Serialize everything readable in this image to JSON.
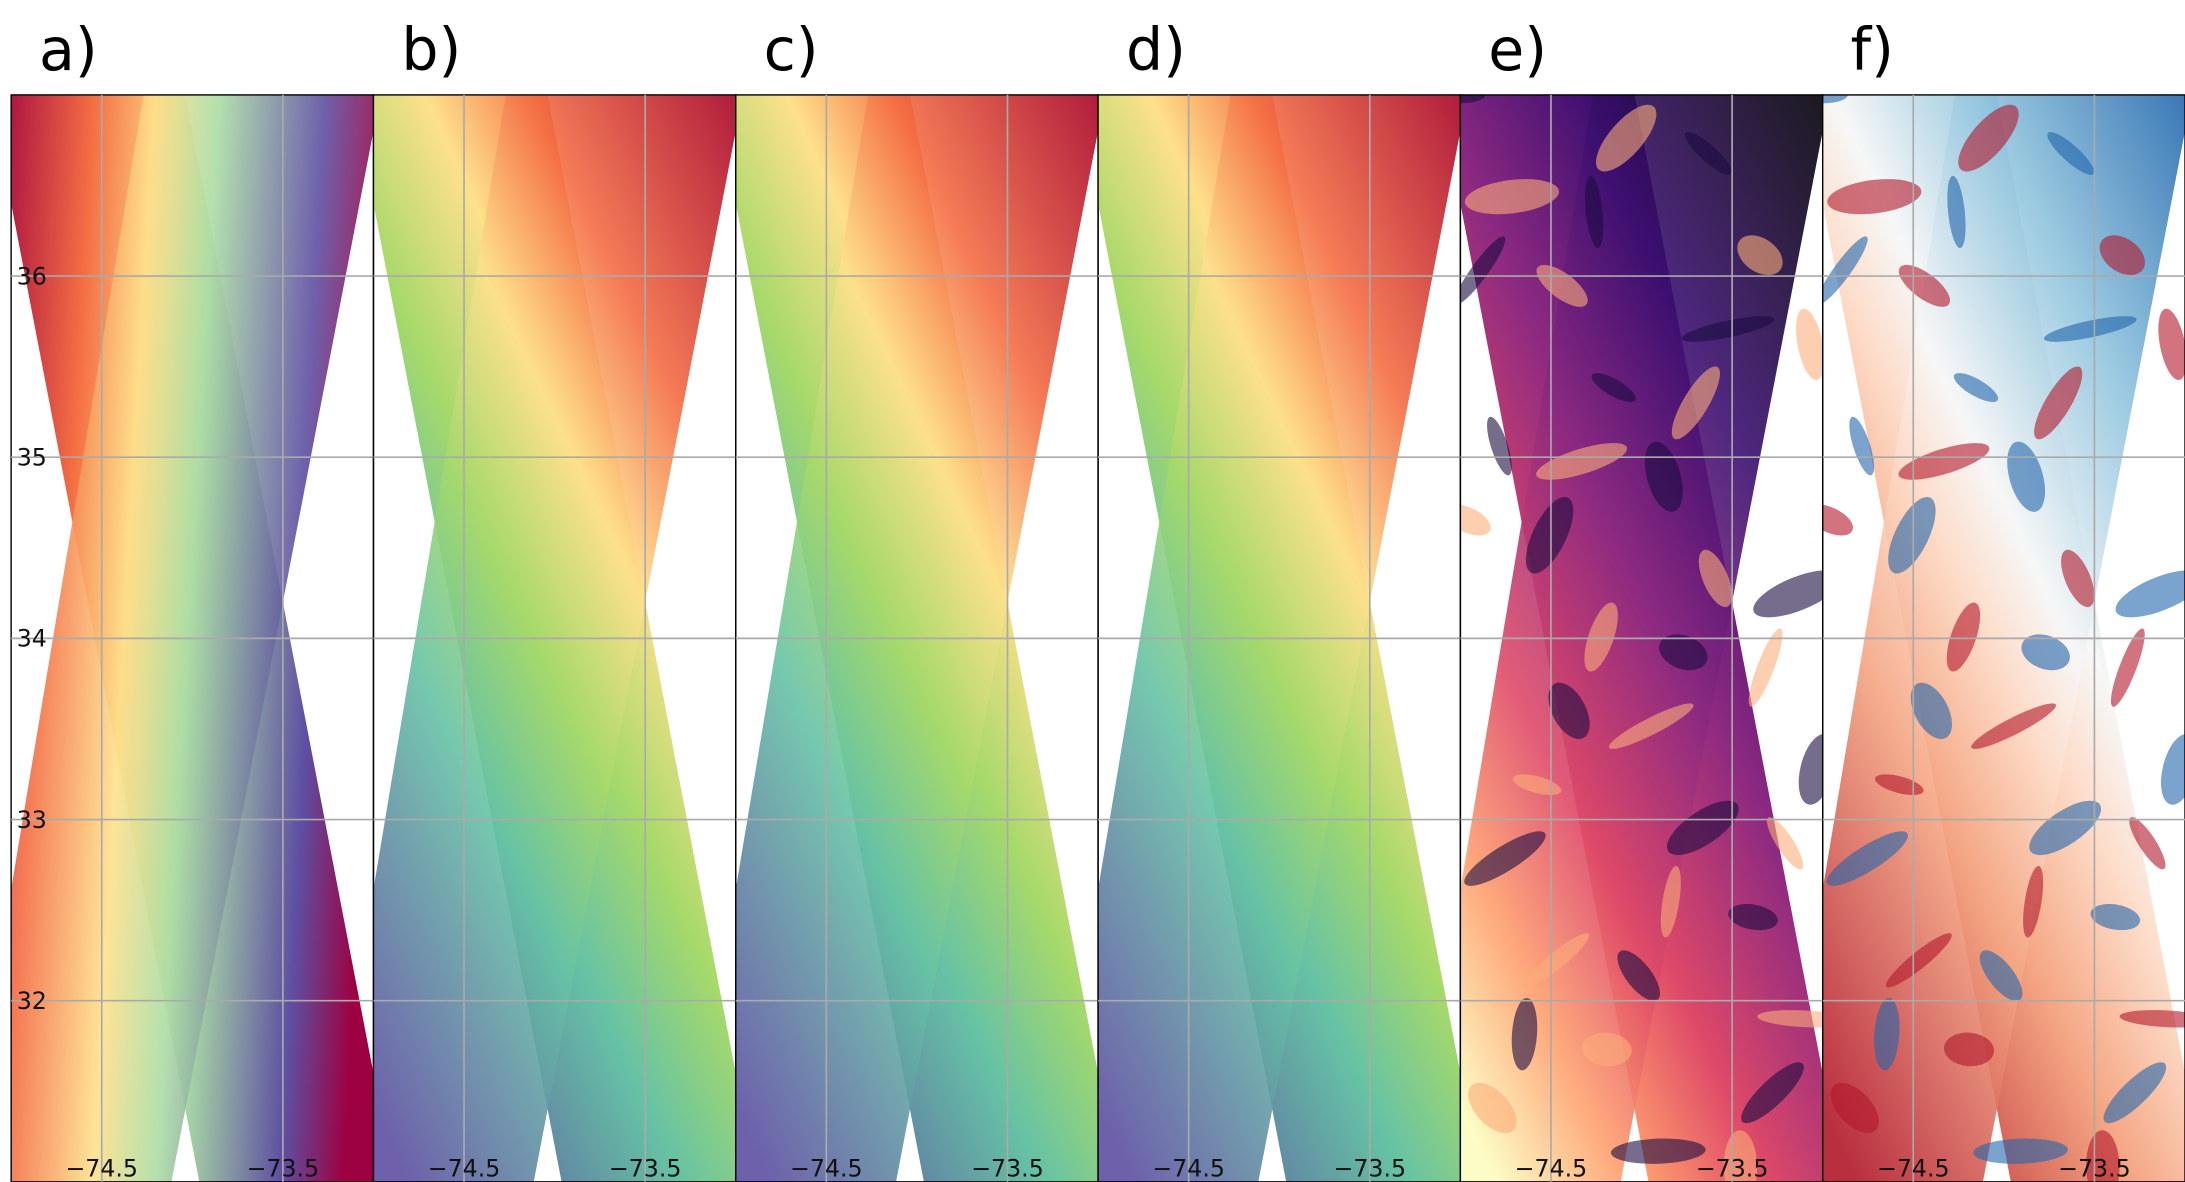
{
  "panels": [
    {
      "label": "a)"
    },
    {
      "label": "b)"
    },
    {
      "label": "c)"
    },
    {
      "label": "d)"
    },
    {
      "label": "e)"
    },
    {
      "label": "f)"
    }
  ],
  "xlim": [
    -75,
    -73
  ],
  "ylim": [
    31,
    37
  ],
  "xticks": [
    {
      "value": -74.5,
      "label": "−74.5"
    },
    {
      "value": -73.5,
      "label": "−73.5"
    }
  ],
  "yticks": [
    32,
    33,
    34,
    35,
    36
  ]
}
